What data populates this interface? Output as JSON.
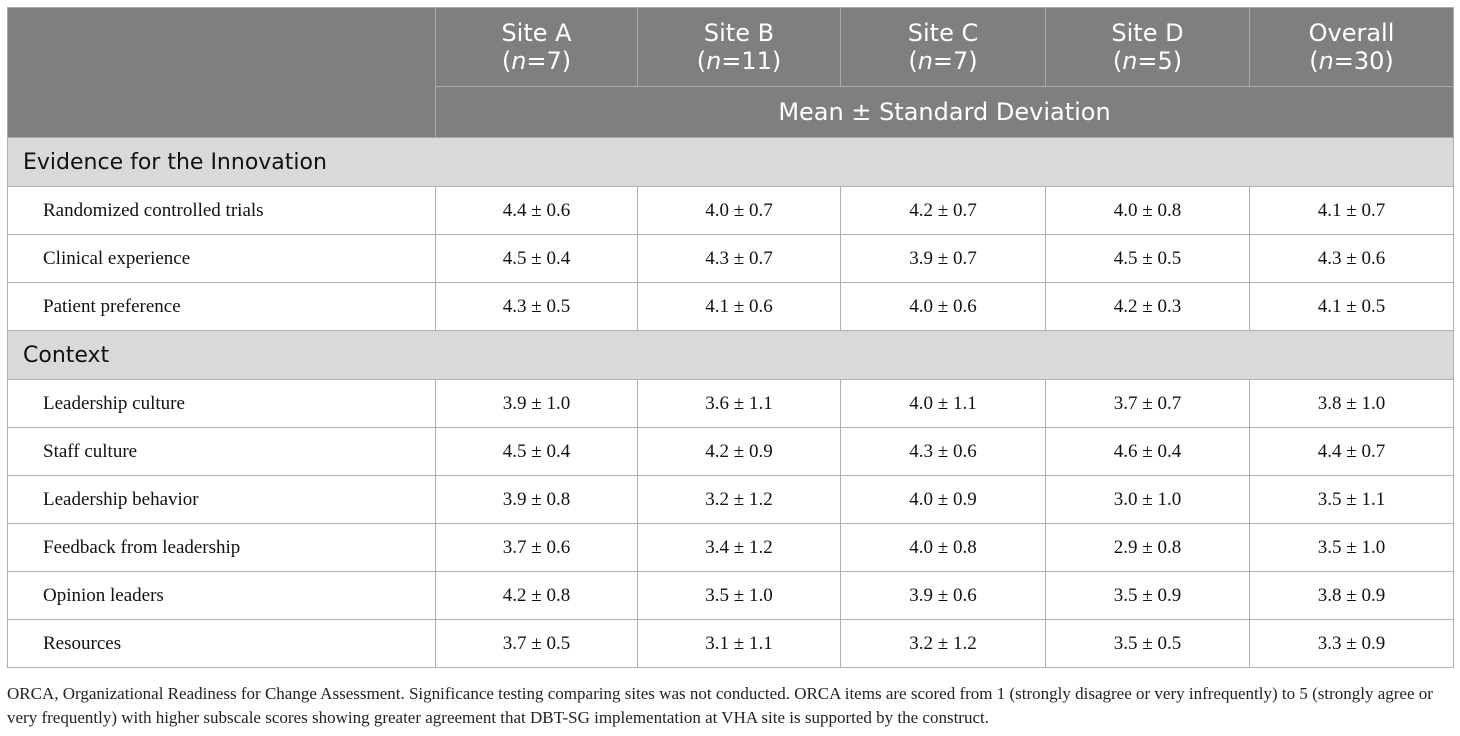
{
  "header": {
    "columns": [
      {
        "name": "Site A",
        "n_prefix": "(",
        "n_italic": "n",
        "n_suffix": "=7)"
      },
      {
        "name": "Site B",
        "n_prefix": "(",
        "n_italic": "n",
        "n_suffix": "=11)"
      },
      {
        "name": "Site C",
        "n_prefix": "(",
        "n_italic": "n",
        "n_suffix": "=7)"
      },
      {
        "name": "Site D",
        "n_prefix": "(",
        "n_italic": "n",
        "n_suffix": "=5)"
      },
      {
        "name": "Overall",
        "n_prefix": "(",
        "n_italic": "n",
        "n_suffix": "=30)"
      }
    ],
    "subheader": "Mean ± Standard Deviation"
  },
  "sections": [
    {
      "title": "Evidence for the Innovation",
      "rows": [
        {
          "label": "Randomized controlled trials",
          "values": [
            "4.4 ± 0.6",
            "4.0 ± 0.7",
            "4.2 ± 0.7",
            "4.0 ± 0.8",
            "4.1 ± 0.7"
          ]
        },
        {
          "label": "Clinical experience",
          "values": [
            "4.5 ± 0.4",
            "4.3 ± 0.7",
            "3.9 ± 0.7",
            "4.5 ± 0.5",
            "4.3 ± 0.6"
          ]
        },
        {
          "label": "Patient preference",
          "values": [
            "4.3 ± 0.5",
            "4.1 ± 0.6",
            "4.0 ± 0.6",
            "4.2 ± 0.3",
            "4.1 ± 0.5"
          ]
        }
      ]
    },
    {
      "title": "Context",
      "rows": [
        {
          "label": "Leadership culture",
          "values": [
            "3.9 ± 1.0",
            "3.6 ± 1.1",
            "4.0 ± 1.1",
            "3.7 ± 0.7",
            "3.8 ± 1.0"
          ]
        },
        {
          "label": "Staff culture",
          "values": [
            "4.5 ± 0.4",
            "4.2 ± 0.9",
            "4.3 ± 0.6",
            "4.6 ± 0.4",
            "4.4 ± 0.7"
          ]
        },
        {
          "label": "Leadership behavior",
          "values": [
            "3.9 ± 0.8",
            "3.2 ± 1.2",
            "4.0 ± 0.9",
            "3.0 ± 1.0",
            "3.5 ± 1.1"
          ]
        },
        {
          "label": "Feedback from leadership",
          "values": [
            "3.7 ± 0.6",
            "3.4 ± 1.2",
            "4.0 ± 0.8",
            "2.9 ± 0.8",
            "3.5 ± 1.0"
          ]
        },
        {
          "label": "Opinion leaders",
          "values": [
            "4.2 ± 0.8",
            "3.5 ± 1.0",
            "3.9 ± 0.6",
            "3.5 ± 0.9",
            "3.8 ± 0.9"
          ]
        },
        {
          "label": "Resources",
          "values": [
            "3.7 ± 0.5",
            "3.1 ± 1.1",
            "3.2 ± 1.2",
            "3.5 ± 0.5",
            "3.3 ± 0.9"
          ]
        }
      ]
    }
  ],
  "footnote": "ORCA, Organizational Readiness for Change Assessment. Significance testing comparing sites was not conducted. ORCA items are scored from 1 (strongly disagree or very infrequently) to 5 (strongly agree or very frequently) with higher subscale scores showing greater agreement that DBT-SG implementation at VHA site is supported by the construct."
}
